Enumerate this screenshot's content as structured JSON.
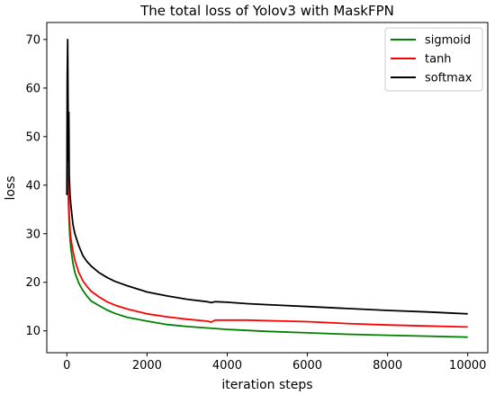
{
  "chart_data": {
    "type": "line",
    "title": "The total loss of Yolov3 with MaskFPN",
    "xlabel": "iteration steps",
    "ylabel": "loss",
    "xlim": [
      -500,
      10500
    ],
    "ylim": [
      5.5,
      73.5
    ],
    "xticks": [
      0,
      2000,
      4000,
      6000,
      8000,
      10000
    ],
    "yticks": [
      10,
      20,
      30,
      40,
      50,
      60,
      70
    ],
    "grid": false,
    "legend_position": "top-right",
    "series": [
      {
        "name": "sigmoid",
        "color": "#008000",
        "points": [
          [
            0,
            38
          ],
          [
            20,
            42
          ],
          [
            40,
            36
          ],
          [
            60,
            32
          ],
          [
            80,
            29
          ],
          [
            100,
            27
          ],
          [
            150,
            24
          ],
          [
            200,
            22
          ],
          [
            300,
            19.8
          ],
          [
            400,
            18.3
          ],
          [
            500,
            17.2
          ],
          [
            600,
            16.2
          ],
          [
            800,
            15.2
          ],
          [
            1000,
            14.3
          ],
          [
            1200,
            13.6
          ],
          [
            1500,
            12.8
          ],
          [
            2000,
            12.0
          ],
          [
            2500,
            11.3
          ],
          [
            3000,
            10.9
          ],
          [
            3500,
            10.6
          ],
          [
            4000,
            10.3
          ],
          [
            5000,
            9.9
          ],
          [
            6000,
            9.6
          ],
          [
            7000,
            9.3
          ],
          [
            8000,
            9.1
          ],
          [
            9000,
            8.9
          ],
          [
            10000,
            8.7
          ]
        ]
      },
      {
        "name": "tanh",
        "color": "#ff0000",
        "points": [
          [
            0,
            38
          ],
          [
            20,
            45
          ],
          [
            40,
            38
          ],
          [
            60,
            34
          ],
          [
            80,
            31
          ],
          [
            100,
            29
          ],
          [
            150,
            26.5
          ],
          [
            200,
            24.5
          ],
          [
            300,
            22
          ],
          [
            400,
            20.3
          ],
          [
            500,
            19.2
          ],
          [
            600,
            18.2
          ],
          [
            800,
            17
          ],
          [
            1000,
            16
          ],
          [
            1200,
            15.3
          ],
          [
            1500,
            14.5
          ],
          [
            2000,
            13.5
          ],
          [
            2500,
            12.9
          ],
          [
            3000,
            12.4
          ],
          [
            3500,
            12.0
          ],
          [
            3600,
            11.8
          ],
          [
            3700,
            12.2
          ],
          [
            4000,
            12.2
          ],
          [
            4500,
            12.2
          ],
          [
            5000,
            12.1
          ],
          [
            6000,
            11.9
          ],
          [
            7000,
            11.5
          ],
          [
            8000,
            11.2
          ],
          [
            9000,
            11.0
          ],
          [
            10000,
            10.8
          ]
        ]
      },
      {
        "name": "softmax",
        "color": "#000000",
        "points": [
          [
            0,
            38
          ],
          [
            10,
            62
          ],
          [
            20,
            70
          ],
          [
            30,
            58
          ],
          [
            40,
            45
          ],
          [
            50,
            55
          ],
          [
            60,
            42
          ],
          [
            80,
            38
          ],
          [
            100,
            36
          ],
          [
            150,
            32
          ],
          [
            200,
            30
          ],
          [
            300,
            27.5
          ],
          [
            400,
            25.5
          ],
          [
            500,
            24.3
          ],
          [
            600,
            23.4
          ],
          [
            800,
            22.0
          ],
          [
            1000,
            21.0
          ],
          [
            1200,
            20.2
          ],
          [
            1500,
            19.3
          ],
          [
            2000,
            18.0
          ],
          [
            2500,
            17.2
          ],
          [
            3000,
            16.5
          ],
          [
            3500,
            16.0
          ],
          [
            3600,
            15.8
          ],
          [
            3700,
            16.0
          ],
          [
            4000,
            15.9
          ],
          [
            4500,
            15.6
          ],
          [
            5000,
            15.4
          ],
          [
            6000,
            15.0
          ],
          [
            7000,
            14.6
          ],
          [
            8000,
            14.2
          ],
          [
            9000,
            13.9
          ],
          [
            10000,
            13.5
          ]
        ]
      }
    ]
  }
}
